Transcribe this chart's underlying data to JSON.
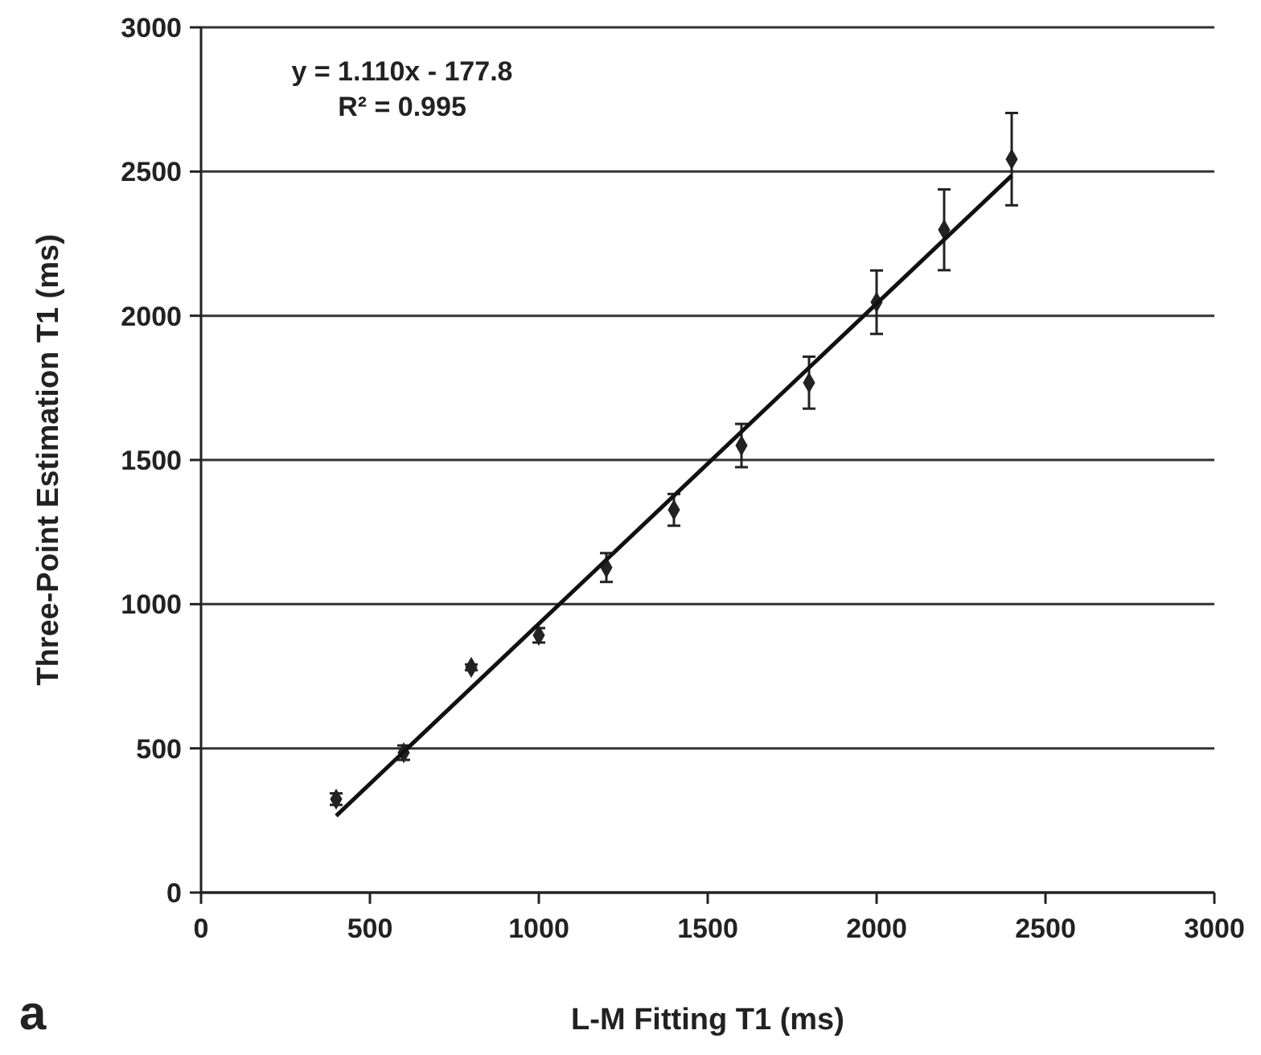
{
  "chart_data": {
    "type": "scatter",
    "xlabel": "L-M Fitting T1 (ms)",
    "ylabel": "Three-Point Estimation T1 (ms)",
    "xlim": [
      0,
      3000
    ],
    "xticks": [
      0,
      500,
      1000,
      1500,
      2000,
      2500,
      3000
    ],
    "ylim": [
      0,
      3000
    ],
    "yticks": [
      0,
      500,
      1000,
      1500,
      2000,
      2500,
      3000
    ],
    "grid": "y",
    "marker": "diamond",
    "series": [
      {
        "color": "#222222",
        "x": [
          400,
          600,
          800,
          1000,
          1200,
          1400,
          1600,
          1800,
          2000,
          2200,
          2400
        ],
        "values": [
          324,
          485,
          781,
          892,
          1127,
          1327,
          1550,
          1768,
          2047,
          2298,
          2543
        ],
        "errors": [
          20,
          25,
          10,
          25,
          50,
          55,
          75,
          90,
          110,
          140,
          160
        ]
      },
      {
        "type": "line",
        "marker": "none",
        "color": "#111111",
        "x": [
          400,
          2400
        ],
        "values": [
          266,
          2486
        ]
      }
    ],
    "annotations": [
      "y = 1.110x - 177.8",
      "R² = 0.995",
      "a"
    ]
  }
}
